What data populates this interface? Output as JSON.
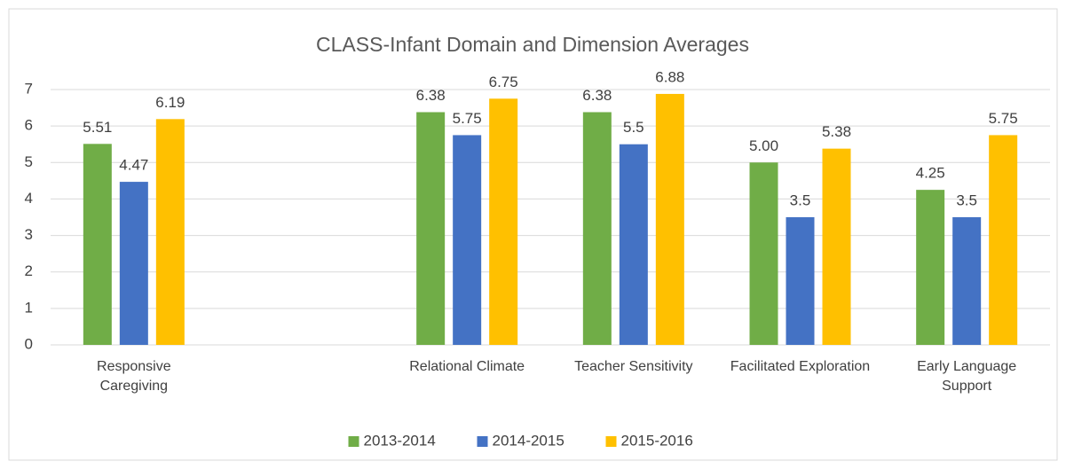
{
  "chart_data": {
    "type": "bar",
    "title": "CLASS-Infant Domain and Dimension Averages",
    "categories": [
      "Responsive Caregiving",
      null,
      "Relational Climate",
      "Teacher Sensitivity",
      "Facilitated Exploration",
      "Early Language Support"
    ],
    "series": [
      {
        "name": "2013-2014",
        "color": "#70ad47",
        "values": [
          5.51,
          null,
          6.38,
          6.38,
          5.0,
          4.25
        ],
        "value_labels": [
          "5.51",
          null,
          "6.38",
          "6.38",
          "5.00",
          "4.25"
        ]
      },
      {
        "name": "2014-2015",
        "color": "#4472c4",
        "values": [
          4.47,
          null,
          5.75,
          5.5,
          3.5,
          3.5
        ]
      },
      {
        "name": "2015-2016",
        "color": "#ffc000",
        "values": [
          6.19,
          null,
          6.75,
          6.88,
          5.38,
          5.75
        ]
      }
    ],
    "ylim": [
      0,
      7
    ],
    "yticks": [
      0,
      1,
      2,
      3,
      4,
      5,
      6,
      7
    ],
    "grid": true,
    "legend": "bottom"
  }
}
